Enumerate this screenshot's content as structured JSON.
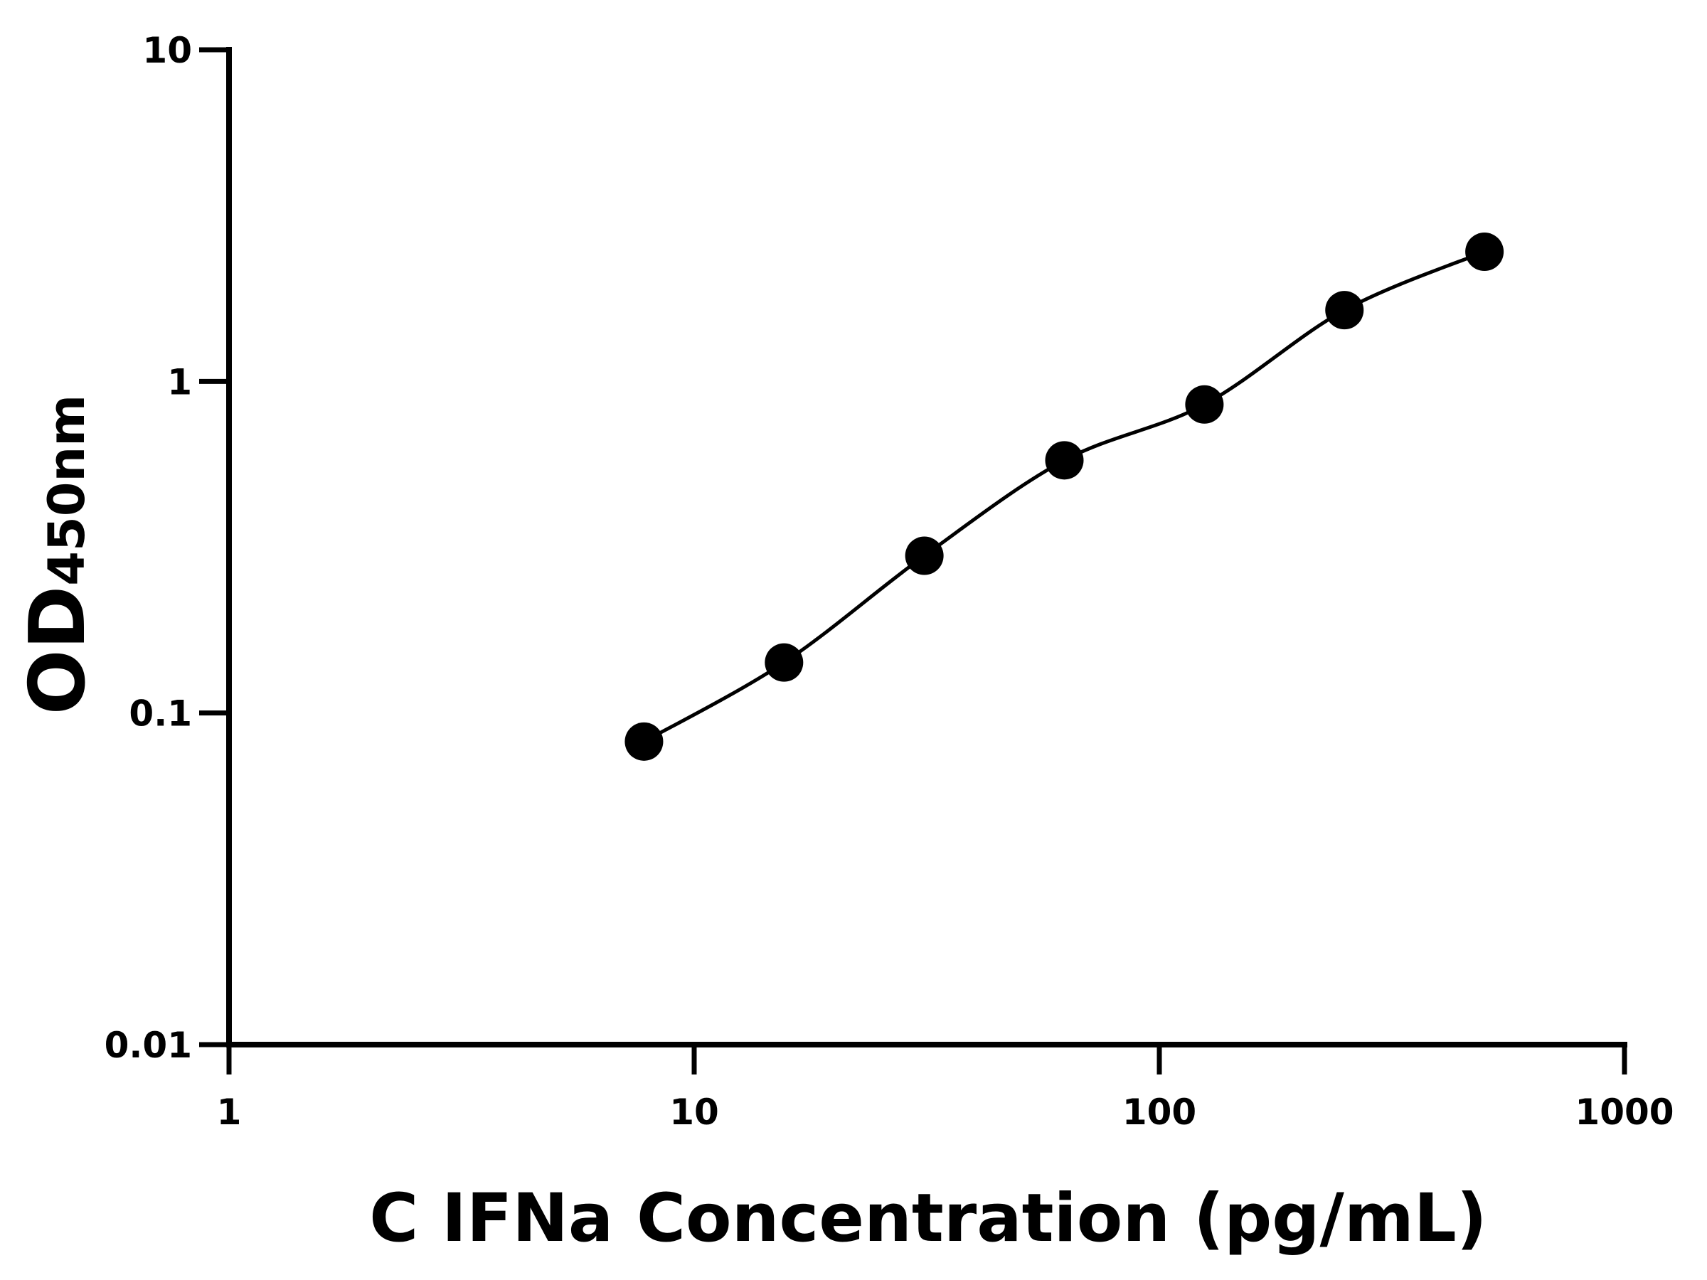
{
  "chart_data": {
    "type": "scatter",
    "xlabel": "C IFNa Concentration (pg/mL)",
    "ylabel": "OD",
    "ylabel_sub": "450nm",
    "x": [
      7.8,
      15.6,
      31.25,
      62.5,
      125,
      250,
      500
    ],
    "series": [
      {
        "color": "#000000",
        "values": [
          0.082,
          0.142,
          0.298,
          0.578,
          0.852,
          1.64,
          2.46
        ]
      }
    ],
    "xlim": [
      1,
      1000
    ],
    "xticks": [
      1,
      10,
      100,
      1000
    ],
    "ylim": [
      0.01,
      10
    ],
    "yticks": [
      0.01,
      0.1,
      1,
      10
    ],
    "xscale": "log",
    "yscale": "log",
    "fit_curve": true
  }
}
